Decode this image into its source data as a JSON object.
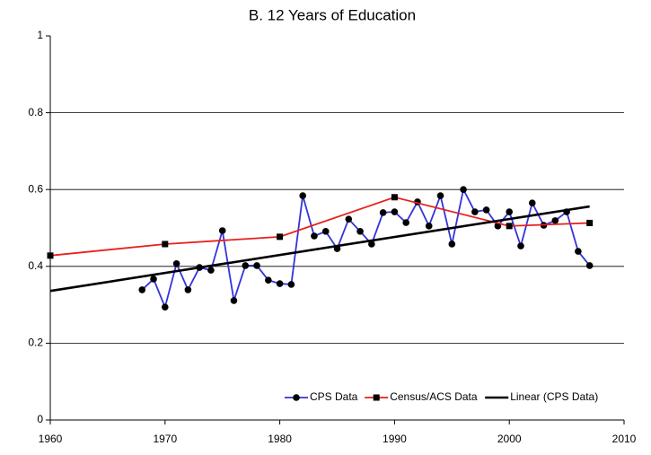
{
  "chart_data": {
    "type": "line",
    "title": "B. 12 Years of Education",
    "xlim": [
      1960,
      2010
    ],
    "xticks": [
      1960,
      1970,
      1980,
      1990,
      2000,
      2010
    ],
    "ylim": [
      0,
      1
    ],
    "yticks": [
      0,
      0.2,
      0.4,
      0.6,
      0.8,
      1
    ],
    "grid": true,
    "legend": "bottom-right",
    "series": [
      {
        "name": "CPS Data",
        "color": "#3333dd",
        "marker": "circle",
        "x": [
          1968,
          1969,
          1970,
          1971,
          1972,
          1973,
          1974,
          1975,
          1976,
          1977,
          1978,
          1979,
          1980,
          1981,
          1982,
          1983,
          1984,
          1985,
          1986,
          1987,
          1988,
          1989,
          1990,
          1991,
          1992,
          1993,
          1994,
          1995,
          1996,
          1997,
          1998,
          1999,
          2000,
          2001,
          2002,
          2003,
          2004,
          2005,
          2006,
          2007
        ],
        "values": [
          0.339,
          0.367,
          0.294,
          0.407,
          0.339,
          0.397,
          0.39,
          0.493,
          0.311,
          0.402,
          0.402,
          0.364,
          0.355,
          0.353,
          0.584,
          0.479,
          0.491,
          0.446,
          0.523,
          0.491,
          0.458,
          0.54,
          0.542,
          0.514,
          0.568,
          0.505,
          0.584,
          0.458,
          0.6,
          0.542,
          0.547,
          0.505,
          0.542,
          0.453,
          0.565,
          0.507,
          0.519,
          0.542,
          0.439,
          0.402
        ]
      },
      {
        "name": "Census/ACS Data",
        "color": "#e8201a",
        "marker": "square",
        "x": [
          1960,
          1970,
          1980,
          1990,
          2000,
          2007
        ],
        "values": [
          0.428,
          0.458,
          0.477,
          0.58,
          0.505,
          0.513
        ]
      },
      {
        "name": "Linear (CPS Data)",
        "color": "#000000",
        "marker": "none",
        "x": [
          1960,
          2007
        ],
        "values": [
          0.336,
          0.556
        ]
      }
    ]
  }
}
